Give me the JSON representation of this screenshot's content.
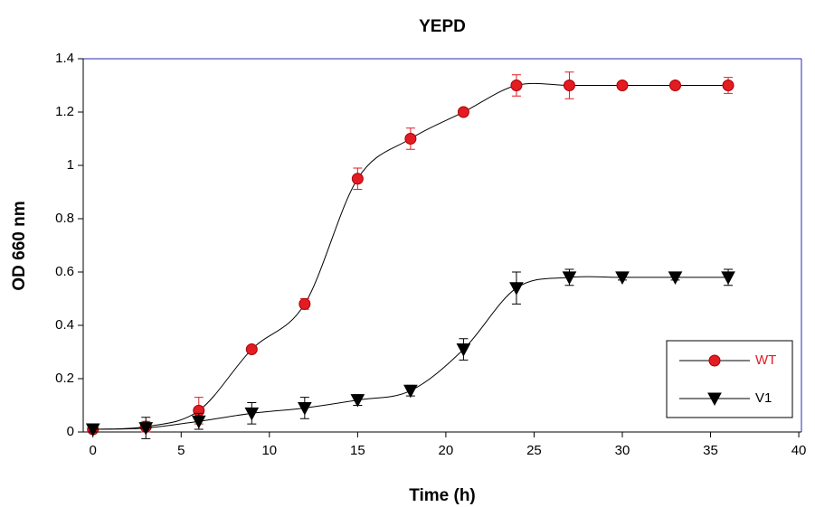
{
  "chart_data": {
    "type": "scatter",
    "title": "YEPD",
    "x_label": "Time (h)",
    "y_label": "OD 660 nm",
    "x": [
      0,
      3,
      6,
      9,
      12,
      15,
      18,
      21,
      24,
      27,
      30,
      33,
      36
    ],
    "series": [
      {
        "name": "WT",
        "color": "#e31b23",
        "marker": "circle",
        "values": [
          0.01,
          0.02,
          0.08,
          0.31,
          0.48,
          0.95,
          1.1,
          1.2,
          1.3,
          1.3,
          1.3,
          1.3,
          1.3
        ],
        "errors": [
          0.005,
          0.02,
          0.05,
          0.01,
          0.02,
          0.04,
          0.04,
          0.01,
          0.04,
          0.05,
          0.005,
          0.01,
          0.03
        ]
      },
      {
        "name": "V1",
        "color": "#000000",
        "marker": "triangle-down",
        "values": [
          0.01,
          0.015,
          0.04,
          0.07,
          0.09,
          0.12,
          0.155,
          0.31,
          0.54,
          0.58,
          0.58,
          0.58,
          0.58
        ],
        "errors": [
          0.01,
          0.04,
          0.03,
          0.04,
          0.04,
          0.02,
          0.02,
          0.04,
          0.06,
          0.03,
          0.01,
          0.01,
          0.03
        ]
      }
    ],
    "line_color": "#000000",
    "smooth": true,
    "xlim": [
      -0.55,
      40.15
    ],
    "xticks": [
      0,
      5,
      10,
      15,
      20,
      25,
      30,
      35,
      40
    ],
    "ylim": [
      0,
      1.4
    ],
    "yticks": [
      0,
      0.2,
      0.4,
      0.6,
      0.8,
      1,
      1.2,
      1.4
    ],
    "frame_color": "#2a2ab8",
    "legend": "lower right"
  }
}
